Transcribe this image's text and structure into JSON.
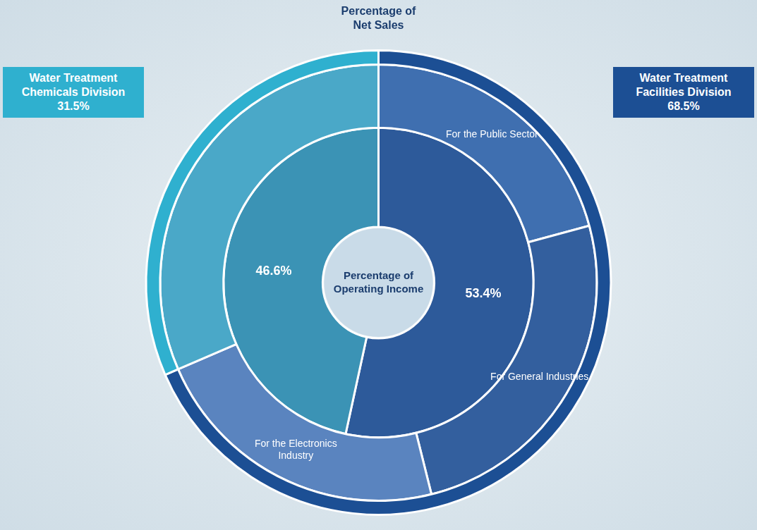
{
  "chart_data": {
    "type": "doughnut",
    "title": "Percentage of Net Sales",
    "series": [
      {
        "name": "Percentage of Net Sales",
        "categories": [
          "Water Treatment Facilities Division",
          "Water Treatment Chemicals Division"
        ],
        "values": [
          68.5,
          31.5
        ],
        "value_labels": [
          "68.5%",
          "31.5%"
        ],
        "colors": [
          "#1c4f94",
          "#2fb0cf"
        ],
        "data_labels": true
      },
      {
        "categories": [
          "For the Public Sector",
          "For General Industries",
          "For the Electronics Industry",
          null
        ],
        "values": [
          20.8,
          25.3,
          22.4,
          31.5
        ],
        "colors": [
          "#3f6fb0",
          "#335f9e",
          "#5a84bf",
          "#4aa8c8"
        ]
      },
      {
        "name": "Percentage of Operating Income",
        "categories": [
          "Water Treatment Facilities Division",
          "Water Treatment Chemicals Division"
        ],
        "values": [
          53.4,
          46.6
        ],
        "value_labels": [
          "53.4%",
          "46.6%"
        ],
        "colors": [
          "#2d5a9a",
          "#3b93b5"
        ],
        "data_labels": true
      }
    ]
  }
}
